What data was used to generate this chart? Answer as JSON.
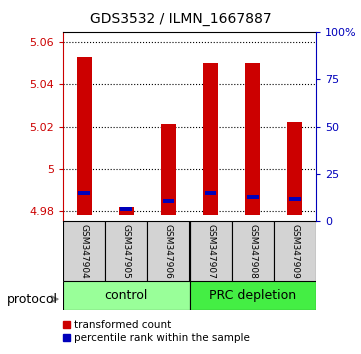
{
  "title": "GDS3532 / ILMN_1667887",
  "samples": [
    "GSM347904",
    "GSM347905",
    "GSM347906",
    "GSM347907",
    "GSM347908",
    "GSM347909"
  ],
  "red_values": [
    5.053,
    4.982,
    5.021,
    5.05,
    5.05,
    5.022
  ],
  "blue_values": [
    4.9885,
    4.981,
    4.9845,
    4.9885,
    4.9865,
    4.9855
  ],
  "baseline": 4.978,
  "ylim_left": [
    4.975,
    5.065
  ],
  "ylim_right": [
    0,
    100
  ],
  "yticks_left": [
    4.98,
    5.0,
    5.02,
    5.04,
    5.06
  ],
  "ytick_labels_left": [
    "4.98",
    "5",
    "5.02",
    "5.04",
    "5.06"
  ],
  "yticks_right": [
    0,
    25,
    50,
    75,
    100
  ],
  "ytick_labels_right": [
    "0",
    "25",
    "50",
    "75",
    "100%"
  ],
  "group_colors": [
    "#99ff99",
    "#44ee44"
  ],
  "bar_color_red": "#cc0000",
  "bar_color_blue": "#0000bb",
  "bar_width": 0.35,
  "blue_bar_width": 0.28,
  "blue_bar_height": 0.002,
  "left_axis_color": "#cc0000",
  "right_axis_color": "#0000bb",
  "protocol_label": "protocol",
  "legend_red": "transformed count",
  "legend_blue": "percentile rank within the sample"
}
